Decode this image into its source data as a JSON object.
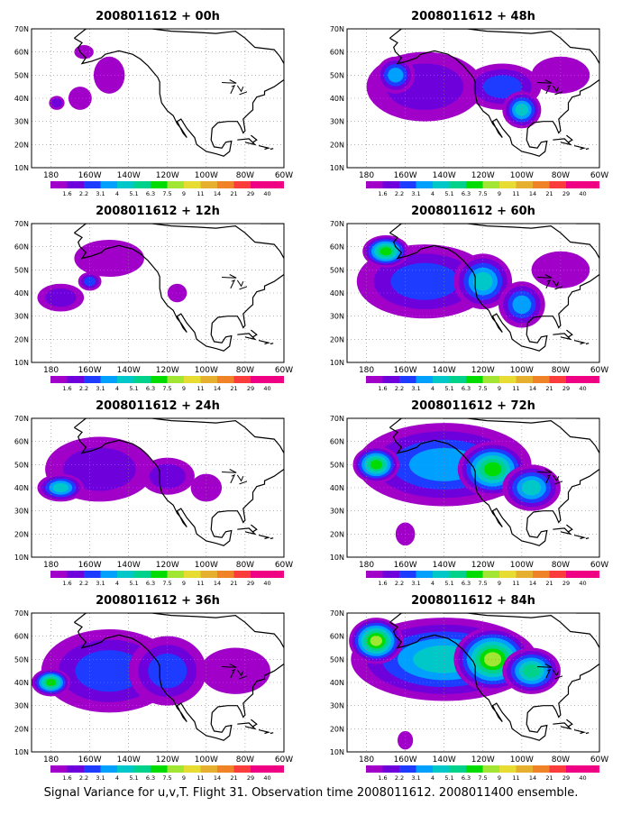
{
  "figure": {
    "caption": "Signal Variance for u,v,T. Flight 31. Observation time 2008011612. 2008011400 ensemble."
  },
  "map_axes": {
    "lon_ticks": [
      "180",
      "160W",
      "140W",
      "120W",
      "100W",
      "80W",
      "60W"
    ],
    "lat_ticks": [
      "10N",
      "20N",
      "30N",
      "40N",
      "50N",
      "60N",
      "70N"
    ]
  },
  "colorbar": {
    "levels": [
      "1.6",
      "2.2",
      "3.1",
      "4",
      "5.1",
      "6.3",
      "7.5",
      "9",
      "11",
      "14",
      "21",
      "29",
      "40"
    ],
    "colors": [
      "#a000c8",
      "#6e00dc",
      "#1e3cff",
      "#00a0ff",
      "#00c8c8",
      "#00d28c",
      "#00dc00",
      "#a0e632",
      "#e6dc32",
      "#e6af2d",
      "#f08228",
      "#fa3c3c",
      "#f00082"
    ]
  },
  "panels": [
    {
      "title": "2008011612 + 00h",
      "lead_hours": 0
    },
    {
      "title": "2008011612 + 48h",
      "lead_hours": 48
    },
    {
      "title": "2008011612 + 12h",
      "lead_hours": 12
    },
    {
      "title": "2008011612 + 60h",
      "lead_hours": 60
    },
    {
      "title": "2008011612 + 24h",
      "lead_hours": 24
    },
    {
      "title": "2008011612 + 72h",
      "lead_hours": 72
    },
    {
      "title": "2008011612 + 36h",
      "lead_hours": 36
    },
    {
      "title": "2008011612 + 84h",
      "lead_hours": 84
    }
  ]
}
